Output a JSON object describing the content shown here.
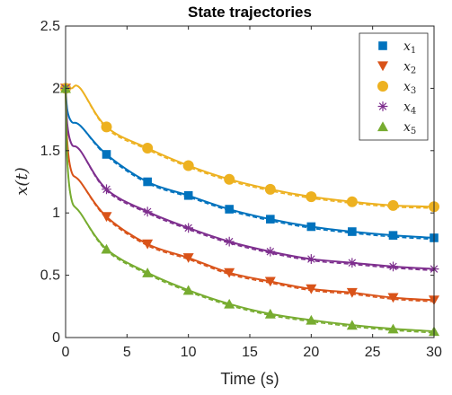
{
  "chart_data": {
    "type": "line",
    "title": "State trajectories",
    "xlabel": "Time (s)",
    "ylabel": "x(t)",
    "xlim": [
      0,
      30
    ],
    "ylim": [
      0,
      2.5
    ],
    "xticks": [
      0,
      5,
      10,
      15,
      20,
      25,
      30
    ],
    "yticks": [
      0,
      0.5,
      1,
      1.5,
      2,
      2.5
    ],
    "xtick_labels": [
      "0",
      "5",
      "10",
      "15",
      "20",
      "25",
      "30"
    ],
    "ytick_labels": [
      "0",
      "0.5",
      "1",
      "1.5",
      "2",
      "2.5"
    ],
    "grid": false,
    "legend_position": "top-right",
    "line_styles": [
      "solid",
      "dashed"
    ],
    "marker_times": [
      0,
      3.33,
      6.67,
      10,
      13.33,
      16.67,
      20,
      23.33,
      26.67,
      30
    ],
    "series": [
      {
        "name": "x_1",
        "color": "#0072BD",
        "marker": "square",
        "x0": 2.0,
        "x_early": 1.7,
        "values": [
          2.0,
          1.47,
          1.25,
          1.14,
          1.03,
          0.95,
          0.89,
          0.85,
          0.82,
          0.8
        ]
      },
      {
        "name": "x_2",
        "color": "#D95319",
        "marker": "triangle-down",
        "x0": 2.0,
        "x_early": 1.25,
        "values": [
          2.0,
          0.97,
          0.75,
          0.64,
          0.52,
          0.45,
          0.39,
          0.36,
          0.32,
          0.3
        ]
      },
      {
        "name": "x_3",
        "color": "#EDB120",
        "marker": "circle",
        "x0": 2.0,
        "x_early": 2.0,
        "values": [
          2.0,
          1.69,
          1.52,
          1.38,
          1.27,
          1.19,
          1.13,
          1.09,
          1.06,
          1.05
        ]
      },
      {
        "name": "x_4",
        "color": "#7E2F8E",
        "marker": "asterisk",
        "x0": 2.0,
        "x_early": 1.5,
        "values": [
          2.0,
          1.19,
          1.01,
          0.88,
          0.77,
          0.69,
          0.63,
          0.6,
          0.57,
          0.55
        ]
      },
      {
        "name": "x_5",
        "color": "#77AC30",
        "marker": "triangle-up",
        "x0": 2.0,
        "x_early": 1.0,
        "values": [
          2.0,
          0.71,
          0.52,
          0.38,
          0.27,
          0.19,
          0.14,
          0.1,
          0.07,
          0.05
        ]
      }
    ]
  }
}
